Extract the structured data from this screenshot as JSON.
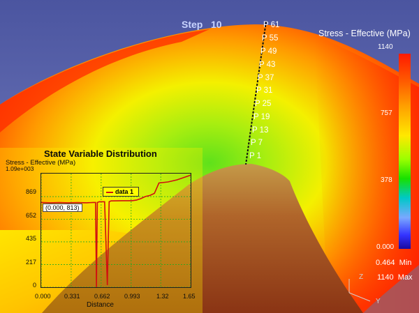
{
  "viewer": {
    "step_label": "Step",
    "step_value": "10",
    "legend": {
      "title": "Stress - Effective (MPa)",
      "ticks": [
        "1140",
        "757",
        "378",
        "0.000"
      ],
      "min_value": "0.464",
      "min_label": "Min",
      "max_value": "1140",
      "max_label": "Max",
      "colors": [
        "#ff1a00",
        "#ffa500",
        "#ffe800",
        "#18e000",
        "#00c8c8",
        "#3333ff",
        "#1a0aa0"
      ]
    },
    "path_points": [
      "P 61",
      "P 55",
      "P 49",
      "P 43",
      "P 37",
      "P 31",
      "P 25",
      "P 19",
      "P 13",
      "P 7",
      "P 1"
    ],
    "axis_labels": {
      "x": "Z",
      "y": "Y"
    }
  },
  "chart": {
    "title": "State Variable Distribution",
    "ylabel": "Stress - Effective (MPa)",
    "ymax_label": "1.09e+003",
    "yticks": [
      "869",
      "652",
      "435",
      "217",
      "0"
    ],
    "xticks": [
      "0.000",
      "0.331",
      "0.662",
      "0.993",
      "1.32",
      "1.65"
    ],
    "xlabel": "Distance",
    "legend_entry": "data 1",
    "tooltip": "(0.000, 813)"
  },
  "chart_data": {
    "type": "line",
    "title": "State Variable Distribution",
    "xlabel": "Distance",
    "ylabel": "Stress - Effective (MPa)",
    "xlim": [
      0,
      1.65
    ],
    "ylim": [
      0,
      1090
    ],
    "grid": true,
    "legend_position": "top-center",
    "series": [
      {
        "name": "data 1",
        "color": "#d01010",
        "x": [
          0.0,
          0.1,
          0.2,
          0.3,
          0.4,
          0.5,
          0.58,
          0.6,
          0.61,
          0.62,
          0.63,
          0.64,
          0.7,
          0.73,
          0.75,
          0.77,
          0.9,
          1.0,
          1.05,
          1.1,
          1.15,
          1.2,
          1.25,
          1.3,
          1.4,
          1.5,
          1.6,
          1.65
        ],
        "y": [
          813,
          810,
          812,
          810,
          812,
          810,
          813,
          813,
          0,
          813,
          816,
          820,
          820,
          20,
          820,
          828,
          830,
          830,
          835,
          850,
          870,
          880,
          900,
          1000,
          1010,
          1030,
          1060,
          1075
        ]
      }
    ]
  }
}
